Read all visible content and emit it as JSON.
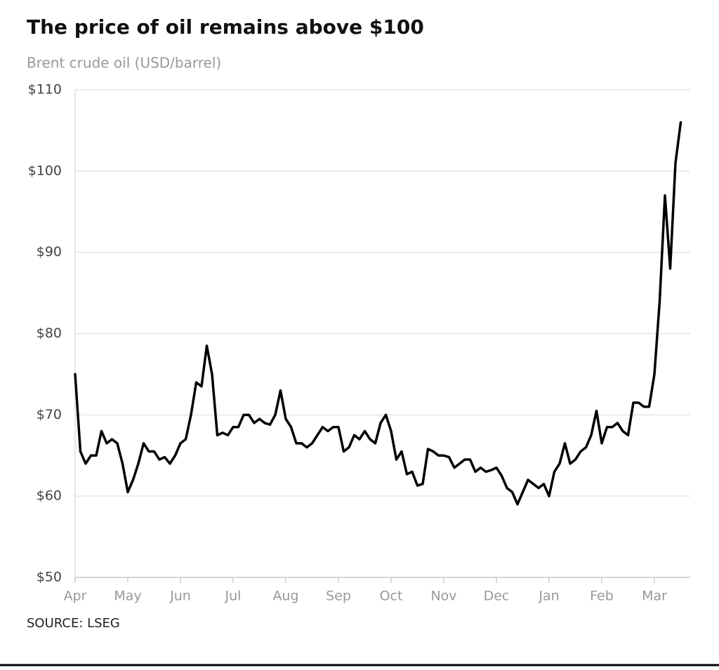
{
  "chart_data": {
    "type": "line",
    "title": "The price of oil remains above $100",
    "subtitle": "Brent crude oil (USD/barrel)",
    "source": "SOURCE: LSEG",
    "categories": [
      "Apr",
      null,
      null,
      null,
      null,
      null,
      null,
      null,
      null,
      null,
      "May",
      null,
      null,
      null,
      null,
      null,
      null,
      null,
      null,
      null,
      "Jun",
      null,
      null,
      null,
      null,
      null,
      null,
      null,
      null,
      null,
      "Jul",
      null,
      null,
      null,
      null,
      null,
      null,
      null,
      null,
      null,
      "Aug",
      null,
      null,
      null,
      null,
      null,
      null,
      null,
      null,
      null,
      "Sep",
      null,
      null,
      null,
      null,
      null,
      null,
      null,
      null,
      null,
      "Oct",
      null,
      null,
      null,
      null,
      null,
      null,
      null,
      null,
      null,
      "Nov",
      null,
      null,
      null,
      null,
      null,
      null,
      null,
      null,
      null,
      "Dec",
      null,
      null,
      null,
      null,
      null,
      null,
      null,
      null,
      null,
      "Jan",
      null,
      null,
      null,
      null,
      null,
      null,
      null,
      null,
      null,
      "Feb",
      null,
      null,
      null,
      null,
      null,
      null,
      null,
      null,
      null,
      "Mar",
      null,
      null,
      null,
      null,
      null
    ],
    "values": [
      75,
      65.5,
      64,
      65,
      65,
      68,
      66.5,
      67,
      66.5,
      64,
      60.5,
      62,
      64,
      66.5,
      65.5,
      65.5,
      64.5,
      64.8,
      64,
      65,
      66.5,
      67,
      70,
      74,
      73.5,
      78.5,
      75,
      67.5,
      67.8,
      67.5,
      68.5,
      68.5,
      70,
      70,
      69,
      69.5,
      69,
      68.8,
      70,
      73,
      69.5,
      68.5,
      66.5,
      66.5,
      66,
      66.5,
      67.5,
      68.5,
      68,
      68.5,
      68.5,
      65.5,
      66,
      67.5,
      67,
      68,
      67,
      66.5,
      69,
      70,
      68,
      64.5,
      65.5,
      62.7,
      63,
      61.3,
      61.5,
      65.8,
      65.5,
      65,
      65,
      64.8,
      63.5,
      64,
      64.5,
      64.5,
      63,
      63.5,
      63,
      63.2,
      63.5,
      62.5,
      61,
      60.5,
      59,
      60.5,
      62,
      61.5,
      61,
      61.5,
      60,
      63,
      64,
      66.5,
      64,
      64.5,
      65.5,
      66,
      67.5,
      70.5,
      66.5,
      68.5,
      68.5,
      69,
      68,
      67.5,
      71.5,
      71.5,
      71,
      71,
      75,
      84,
      97,
      88,
      101,
      106
    ],
    "color": "#000000",
    "ylim": [
      50,
      110
    ],
    "yticks": [
      {
        "value": 50,
        "label": "$50"
      },
      {
        "value": 60,
        "label": "$60"
      },
      {
        "value": 70,
        "label": "$70"
      },
      {
        "value": 80,
        "label": "$80"
      },
      {
        "value": 90,
        "label": "$90"
      },
      {
        "value": 100,
        "label": "$100"
      },
      {
        "value": 110,
        "label": "$110"
      }
    ],
    "grid": true
  }
}
